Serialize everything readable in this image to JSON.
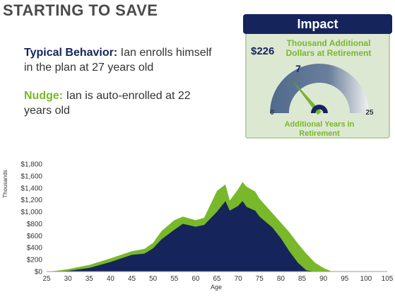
{
  "title": "STARTING TO SAVE",
  "typical": {
    "label": "Typical Behavior:",
    "line1": "Ian enrolls himself",
    "line2": "in the plan at 27 years old"
  },
  "nudge": {
    "label": "Nudge:",
    "line1": "Ian is auto-enrolled at 22",
    "line2": "years old"
  },
  "impact": {
    "header": "Impact",
    "amount": "$226",
    "amount_caption_1": "Thousand Additional",
    "amount_caption_2": "Dollars at Retirement",
    "gauge_value": 7,
    "gauge_value_label": "7",
    "gauge_min": "0",
    "gauge_max": "25",
    "gauge_max_value": 25,
    "years_caption_1": "Additional Years in",
    "years_caption_2": "Retirement"
  },
  "colors": {
    "navy": "#16245c",
    "green": "#78b82a",
    "gauge": "#5a7090"
  },
  "chart_data": {
    "type": "area",
    "xlabel": "Age",
    "ylabel": "Thousands",
    "xlim": [
      25,
      105
    ],
    "ylim": [
      0,
      1800
    ],
    "x_ticks": [
      "25",
      "30",
      "35",
      "40",
      "45",
      "50",
      "55",
      "60",
      "65",
      "70",
      "75",
      "80",
      "85",
      "90",
      "95",
      "100",
      "105"
    ],
    "y_ticks": [
      "$0",
      "$200",
      "$400",
      "$600",
      "$800",
      "$1,000",
      "$1,200",
      "$1,400",
      "$1,600",
      "$1,800"
    ],
    "grid": false,
    "x": [
      25,
      27,
      30,
      35,
      40,
      45,
      48,
      50,
      52,
      55,
      57,
      60,
      62,
      65,
      67,
      68,
      70,
      71,
      72,
      74,
      75,
      78,
      80,
      82,
      84,
      86,
      88,
      90,
      92
    ],
    "series": [
      {
        "color": "#16245c",
        "values": [
          0,
          0,
          10,
          60,
          160,
          280,
          300,
          390,
          540,
          700,
          800,
          750,
          780,
          1000,
          1180,
          1020,
          1100,
          1180,
          1080,
          1020,
          920,
          740,
          560,
          340,
          150,
          20,
          0,
          0,
          0
        ]
      },
      {
        "color": "#78b82a",
        "values": [
          0,
          10,
          40,
          110,
          220,
          340,
          380,
          480,
          680,
          860,
          920,
          860,
          900,
          1350,
          1460,
          1190,
          1380,
          1500,
          1420,
          1340,
          1220,
          980,
          820,
          660,
          470,
          300,
          150,
          60,
          0
        ]
      }
    ]
  }
}
